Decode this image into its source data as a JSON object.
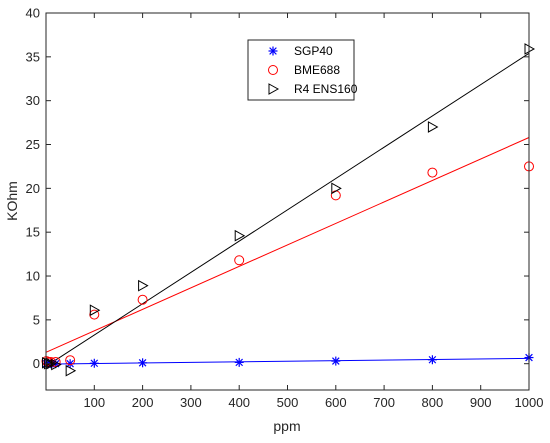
{
  "chart_data": {
    "type": "scatter",
    "title": "",
    "xlabel": "ppm",
    "ylabel": "KOhm",
    "xlim": [
      0,
      1000
    ],
    "ylim": [
      -3,
      40
    ],
    "xticks": [
      100,
      200,
      300,
      400,
      500,
      600,
      700,
      800,
      900,
      1000
    ],
    "yticks": [
      0,
      5,
      10,
      15,
      20,
      25,
      30,
      35,
      40
    ],
    "grid": false,
    "legend_position": "top-center",
    "series": [
      {
        "name": "SGP40",
        "marker": "asterisk",
        "color": "#0000ff",
        "fit_color": "#0000ff",
        "points": [
          [
            1,
            0.0
          ],
          [
            5,
            0.0
          ],
          [
            10,
            0.0
          ],
          [
            20,
            0.0
          ],
          [
            50,
            0.0
          ],
          [
            100,
            0.05
          ],
          [
            200,
            0.1
          ],
          [
            400,
            0.15
          ],
          [
            600,
            0.3
          ],
          [
            800,
            0.45
          ],
          [
            1000,
            0.7
          ]
        ],
        "fit": [
          [
            0,
            -0.05
          ],
          [
            1000,
            0.6
          ]
        ]
      },
      {
        "name": "BME688",
        "marker": "circle",
        "color": "#ff0000",
        "fit_color": "#ff0000",
        "points": [
          [
            1,
            0.3
          ],
          [
            5,
            0.2
          ],
          [
            10,
            0.2
          ],
          [
            20,
            0.2
          ],
          [
            50,
            0.4
          ],
          [
            100,
            5.6
          ],
          [
            200,
            7.3
          ],
          [
            400,
            11.8
          ],
          [
            600,
            19.2
          ],
          [
            800,
            21.8
          ],
          [
            1000,
            22.5
          ]
        ],
        "fit": [
          [
            0,
            1.3
          ],
          [
            1000,
            25.8
          ]
        ]
      },
      {
        "name": "R4 ENS160",
        "marker": "triangle-right",
        "color": "#000000",
        "fit_color": "#000000",
        "points": [
          [
            1,
            0.1
          ],
          [
            5,
            0.0
          ],
          [
            10,
            0.0
          ],
          [
            20,
            -0.1
          ],
          [
            50,
            -0.8
          ],
          [
            100,
            6.1
          ],
          [
            200,
            8.9
          ],
          [
            400,
            14.6
          ],
          [
            600,
            20.0
          ],
          [
            800,
            27.0
          ],
          [
            1000,
            35.9
          ]
        ],
        "fit": [
          [
            0,
            -0.3
          ],
          [
            1000,
            35.4
          ]
        ]
      }
    ]
  }
}
